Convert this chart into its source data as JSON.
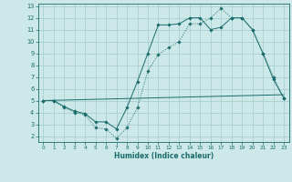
{
  "background_color": "#cce8e8",
  "grid_color": "#aacfcf",
  "line_color": "#1a6b6b",
  "x_label": "Humidex (Indice chaleur)",
  "ylim": [
    1.5,
    13.2
  ],
  "xlim": [
    -0.5,
    23.5
  ],
  "yticks": [
    2,
    3,
    4,
    5,
    6,
    7,
    8,
    9,
    10,
    11,
    12,
    13
  ],
  "xticks": [
    0,
    1,
    2,
    3,
    4,
    5,
    6,
    7,
    8,
    9,
    10,
    11,
    12,
    13,
    14,
    15,
    16,
    17,
    18,
    19,
    20,
    21,
    22,
    23
  ],
  "line1_x": [
    0,
    1,
    2,
    3,
    4,
    5,
    6,
    7,
    8,
    9,
    10,
    11,
    12,
    13,
    14,
    15,
    16,
    17,
    18,
    19,
    20,
    21,
    22,
    23
  ],
  "line1_y": [
    5.0,
    5.0,
    4.4,
    4.0,
    3.8,
    2.7,
    2.6,
    1.8,
    2.7,
    4.4,
    7.5,
    8.9,
    9.5,
    10.0,
    11.5,
    11.5,
    12.0,
    12.8,
    12.0,
    12.0,
    11.0,
    9.0,
    7.0,
    5.2
  ],
  "line2_x": [
    0,
    23
  ],
  "line2_y": [
    5.0,
    5.5
  ],
  "line3_x": [
    0,
    1,
    2,
    3,
    4,
    5,
    6,
    7,
    8,
    9,
    10,
    11,
    12,
    13,
    14,
    15,
    16,
    17,
    18,
    19,
    20,
    21,
    22,
    23
  ],
  "line3_y": [
    5.0,
    5.0,
    4.5,
    4.1,
    3.9,
    3.2,
    3.2,
    2.6,
    4.4,
    6.6,
    9.0,
    11.4,
    11.4,
    11.5,
    12.0,
    12.0,
    11.0,
    11.2,
    12.0,
    12.0,
    11.0,
    9.0,
    6.8,
    5.2
  ]
}
